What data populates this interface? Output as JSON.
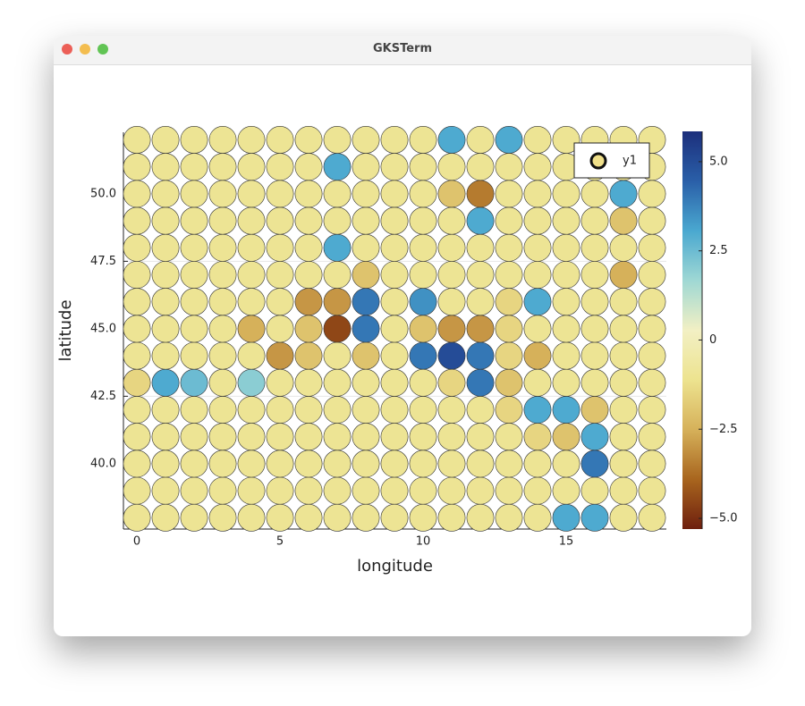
{
  "window": {
    "title": "GKSTerm"
  },
  "chart_data": {
    "type": "scatter",
    "x_label": "longitude",
    "y_label": "latitude",
    "xlim": [
      -0.47,
      18.5
    ],
    "ylim": [
      37.58,
      52.28
    ],
    "xticks": [
      0,
      5,
      10,
      15
    ],
    "yticks": [
      {
        "value": 40,
        "label": "40.0"
      },
      {
        "value": 42.5,
        "label": "42.5"
      },
      {
        "value": 45,
        "label": "45.0"
      },
      {
        "value": 47.5,
        "label": "47.5"
      },
      {
        "value": 50,
        "label": "50.0"
      }
    ],
    "grid": true,
    "legend": "top right",
    "series": [
      {
        "name": "y1",
        "color": "#f0e08a",
        "x": [
          0,
          1,
          2,
          3,
          4,
          5,
          6,
          7,
          8,
          9,
          10,
          11,
          12,
          13,
          14,
          15,
          16,
          17,
          18
        ],
        "y": [
          38,
          39,
          40,
          41,
          42,
          43,
          44,
          45,
          46,
          47,
          48,
          49,
          50,
          51,
          52
        ],
        "values": [
          [
            -1,
            -1,
            -1,
            -1,
            -1,
            -1,
            -1,
            -1,
            -1,
            -1,
            -1,
            -1,
            -1,
            -1,
            -1,
            3,
            3,
            -1,
            -1
          ],
          [
            -1,
            -1,
            -1,
            -1,
            -1,
            -1,
            -1,
            -1,
            -1,
            -1,
            -1,
            -1,
            -1,
            -1,
            -1,
            -1,
            -1,
            -1,
            -1
          ],
          [
            -1,
            -1,
            -1,
            -1,
            -1,
            -1,
            -1,
            -1,
            -1,
            -1,
            -1,
            -1,
            -1,
            -1,
            -1,
            -1,
            4,
            -1,
            -1
          ],
          [
            -1,
            -1,
            -1,
            -1,
            -1,
            -1,
            -1,
            -1,
            -1,
            -1,
            -1,
            -1,
            -1,
            -1,
            -1.5,
            -2,
            3,
            -1,
            -1
          ],
          [
            -1,
            -1,
            -1,
            -1,
            -1,
            -1,
            -1,
            -1,
            -1,
            -1,
            -1,
            -1,
            -1,
            -1.5,
            3,
            3,
            -2,
            -1,
            -1
          ],
          [
            -1.5,
            3,
            2.5,
            -1,
            2,
            -1,
            -1,
            -1,
            -1,
            -1,
            -1,
            -1.5,
            4,
            -2,
            -1,
            -1,
            -1,
            -1,
            -1
          ],
          [
            -1,
            -1,
            -1,
            -1,
            -1,
            -3,
            -2,
            -1,
            -2,
            -1,
            4,
            5,
            4,
            -1.5,
            -2.5,
            -1,
            -1,
            -1,
            -1
          ],
          [
            -1,
            -1,
            -1,
            -1,
            -2.5,
            -1,
            -2,
            -4.5,
            4,
            -1,
            -2,
            -3,
            -3,
            -1.5,
            -1,
            -1,
            -1,
            -1,
            -1
          ],
          [
            -1,
            -1,
            -1,
            -1,
            -1,
            -1,
            -3,
            -3,
            4,
            -1,
            3.5,
            -1,
            -1,
            -1.5,
            3,
            -1,
            -1,
            -1,
            -1
          ],
          [
            -1,
            -1,
            -1,
            -1,
            -1,
            -1,
            -1,
            -1,
            -2,
            -1,
            -1,
            -1,
            -1,
            -1,
            -1,
            -1,
            -1,
            -2.5,
            -1
          ],
          [
            -1,
            -1,
            -1,
            -1,
            -1,
            -1,
            -1,
            3,
            -1,
            -1,
            -1,
            -1,
            -1,
            -1,
            -1,
            -1,
            -1,
            -1,
            -1
          ],
          [
            -1,
            -1,
            -1,
            -1,
            -1,
            -1,
            -1,
            -1,
            -1,
            -1,
            -1,
            -1,
            3,
            -1,
            -1,
            -1,
            -1,
            -2,
            -1
          ],
          [
            -1,
            -1,
            -1,
            -1,
            -1,
            -1,
            -1,
            -1,
            -1,
            -1,
            -1,
            -2,
            -3.5,
            -1,
            -1,
            -1,
            -1,
            3,
            -1
          ],
          [
            -1,
            -1,
            -1,
            -1,
            -1,
            -1,
            -1,
            3,
            -1,
            -1,
            -1,
            -1,
            -1,
            -1,
            -1,
            -1,
            -1,
            -1,
            -1
          ],
          [
            -1,
            -1,
            -1,
            -1,
            -1,
            -1,
            -1,
            -1,
            -1,
            -1,
            -1,
            3,
            -1,
            3,
            -1,
            -1,
            -1,
            -1,
            -1
          ]
        ]
      }
    ],
    "colorbar": {
      "clim": [
        -5.3,
        5.85
      ],
      "ticks": [
        {
          "value": -5,
          "label": "−5.0"
        },
        {
          "value": -2.5,
          "label": "−2.5"
        },
        {
          "value": 0,
          "label": "0"
        },
        {
          "value": 2.5,
          "label": "2.5"
        },
        {
          "value": 5,
          "label": "5.0"
        }
      ],
      "colormap": [
        "#6e1f0e",
        "#a8651e",
        "#d6b15a",
        "#ede38f",
        "#f2f0c4",
        "#9fd8d4",
        "#4aa8d0",
        "#2a5fa8",
        "#1c2f7c"
      ]
    }
  }
}
